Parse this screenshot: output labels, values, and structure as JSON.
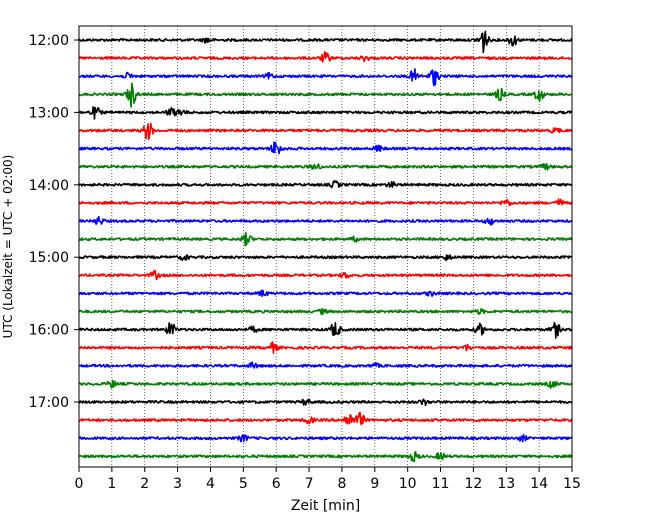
{
  "chart_data": {
    "type": "line",
    "title": "",
    "xlabel": "Zeit  [min]",
    "ylabel": "UTC (Lokalzeit = UTC + 02:00)",
    "xlim": [
      0,
      15
    ],
    "x_ticks": [
      0,
      1,
      2,
      3,
      4,
      5,
      6,
      7,
      8,
      9,
      10,
      11,
      12,
      13,
      14,
      15
    ],
    "x_tick_labels": [
      "0",
      "1",
      "2",
      "3",
      "4",
      "5",
      "6",
      "7",
      "8",
      "9",
      "10",
      "11",
      "12",
      "13",
      "14",
      "15"
    ],
    "y_tick_labels": [
      "12:00",
      "13:00",
      "14:00",
      "15:00",
      "16:00",
      "17:00"
    ],
    "grid_x": true,
    "trace_interval_min": 15,
    "color_cycle": [
      "#000000",
      "#ff0000",
      "#0000ff",
      "#008000"
    ],
    "traces": [
      {
        "start": "12:00",
        "bursts": [
          {
            "t": 12.3,
            "amp": 1.0
          },
          {
            "t": 13.2,
            "amp": 0.45
          },
          {
            "t": 3.9,
            "amp": 0.2
          }
        ]
      },
      {
        "start": "12:15",
        "bursts": [
          {
            "t": 7.5,
            "amp": 0.4
          },
          {
            "t": 8.7,
            "amp": 0.2
          }
        ]
      },
      {
        "start": "12:30",
        "bursts": [
          {
            "t": 10.2,
            "amp": 0.5
          },
          {
            "t": 10.8,
            "amp": 0.65
          },
          {
            "t": 1.5,
            "amp": 0.2
          },
          {
            "t": 5.8,
            "amp": 0.2
          }
        ]
      },
      {
        "start": "12:45",
        "bursts": [
          {
            "t": 1.6,
            "amp": 0.9
          },
          {
            "t": 12.8,
            "amp": 0.45
          },
          {
            "t": 14.0,
            "amp": 0.5
          }
        ]
      },
      {
        "start": "13:00",
        "bursts": [
          {
            "t": 0.5,
            "amp": 0.45
          },
          {
            "t": 2.8,
            "amp": 0.3
          },
          {
            "t": 3.1,
            "amp": 0.25
          }
        ]
      },
      {
        "start": "13:15",
        "bursts": [
          {
            "t": 2.1,
            "amp": 0.75
          },
          {
            "t": 14.5,
            "amp": 0.2
          }
        ]
      },
      {
        "start": "13:30",
        "bursts": [
          {
            "t": 6.0,
            "amp": 0.65
          },
          {
            "t": 9.1,
            "amp": 0.2
          }
        ]
      },
      {
        "start": "13:45",
        "bursts": [
          {
            "t": 7.2,
            "amp": 0.25
          },
          {
            "t": 14.2,
            "amp": 0.2
          }
        ]
      },
      {
        "start": "14:00",
        "bursts": [
          {
            "t": 7.8,
            "amp": 0.25
          },
          {
            "t": 9.5,
            "amp": 0.2
          }
        ]
      },
      {
        "start": "14:15",
        "bursts": [
          {
            "t": 13.0,
            "amp": 0.25
          },
          {
            "t": 14.6,
            "amp": 0.25
          }
        ]
      },
      {
        "start": "14:30",
        "bursts": [
          {
            "t": 0.6,
            "amp": 0.3
          },
          {
            "t": 12.5,
            "amp": 0.25
          }
        ]
      },
      {
        "start": "14:45",
        "bursts": [
          {
            "t": 5.1,
            "amp": 0.45
          },
          {
            "t": 8.4,
            "amp": 0.15
          }
        ]
      },
      {
        "start": "15:00",
        "bursts": [
          {
            "t": 3.2,
            "amp": 0.2
          },
          {
            "t": 11.2,
            "amp": 0.2
          }
        ]
      },
      {
        "start": "15:15",
        "bursts": [
          {
            "t": 2.3,
            "amp": 0.3
          },
          {
            "t": 8.1,
            "amp": 0.2
          }
        ]
      },
      {
        "start": "15:30",
        "bursts": [
          {
            "t": 5.6,
            "amp": 0.2
          },
          {
            "t": 10.7,
            "amp": 0.15
          }
        ]
      },
      {
        "start": "15:45",
        "bursts": [
          {
            "t": 7.4,
            "amp": 0.15
          },
          {
            "t": 12.2,
            "amp": 0.15
          }
        ]
      },
      {
        "start": "16:00",
        "bursts": [
          {
            "t": 2.8,
            "amp": 0.55
          },
          {
            "t": 7.8,
            "amp": 0.6
          },
          {
            "t": 12.2,
            "amp": 0.4
          },
          {
            "t": 14.5,
            "amp": 0.55
          },
          {
            "t": 5.3,
            "amp": 0.2
          }
        ]
      },
      {
        "start": "16:15",
        "bursts": [
          {
            "t": 5.9,
            "amp": 0.35
          },
          {
            "t": 11.8,
            "amp": 0.2
          }
        ]
      },
      {
        "start": "16:30",
        "bursts": [
          {
            "t": 5.3,
            "amp": 0.2
          },
          {
            "t": 9.0,
            "amp": 0.15
          }
        ]
      },
      {
        "start": "16:45",
        "bursts": [
          {
            "t": 1.0,
            "amp": 0.25
          },
          {
            "t": 14.4,
            "amp": 0.25
          }
        ]
      },
      {
        "start": "17:00",
        "bursts": [
          {
            "t": 6.9,
            "amp": 0.2
          },
          {
            "t": 10.5,
            "amp": 0.2
          }
        ]
      },
      {
        "start": "17:15",
        "bursts": [
          {
            "t": 8.2,
            "amp": 0.55
          },
          {
            "t": 8.55,
            "amp": 0.55
          },
          {
            "t": 7.0,
            "amp": 0.25
          }
        ]
      },
      {
        "start": "17:30",
        "bursts": [
          {
            "t": 5.0,
            "amp": 0.25
          },
          {
            "t": 13.5,
            "amp": 0.2
          }
        ]
      },
      {
        "start": "17:45",
        "bursts": [
          {
            "t": 10.2,
            "amp": 0.35
          },
          {
            "t": 11.0,
            "amp": 0.25
          }
        ]
      }
    ]
  }
}
